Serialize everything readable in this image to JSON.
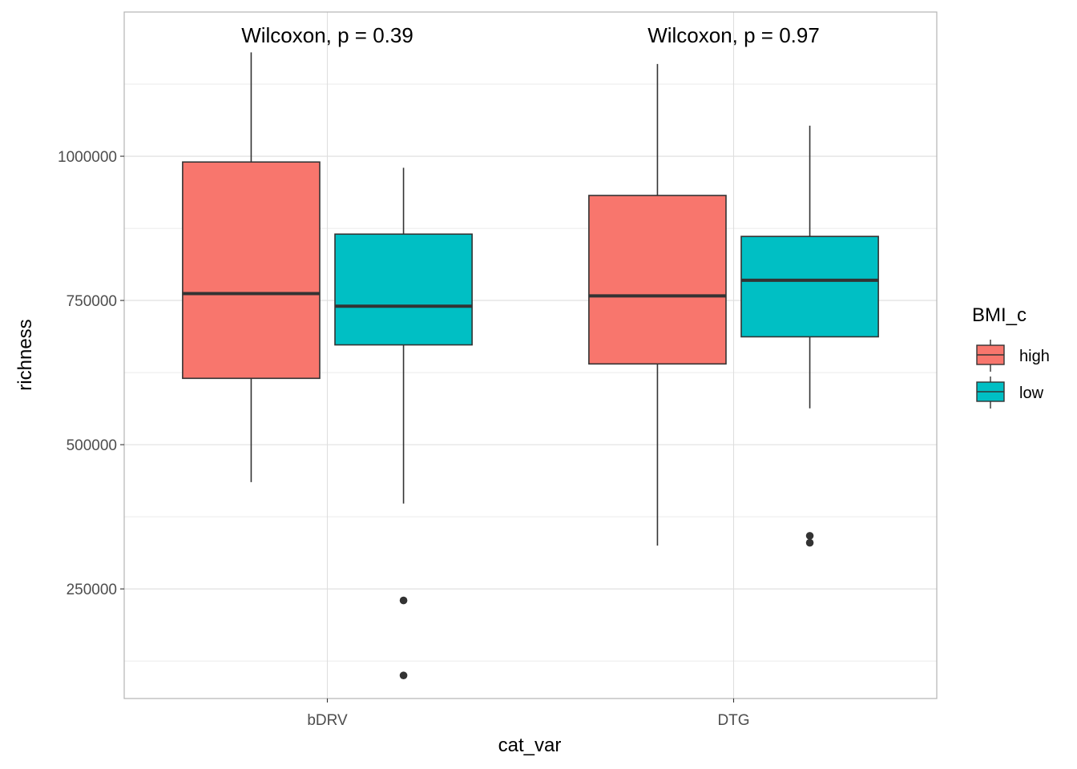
{
  "chart_data": {
    "type": "box",
    "xlabel": "cat_var",
    "ylabel": "richness",
    "categories": [
      "bDRV",
      "DTG"
    ],
    "y_ticks": [
      250000,
      500000,
      750000,
      1000000
    ],
    "y_tick_labels": [
      "250000",
      "500000",
      "750000",
      "1000000"
    ],
    "ylim": [
      60000,
      1250000
    ],
    "grid": true,
    "legend": {
      "title": "BMI_c",
      "placement": "right",
      "items": [
        {
          "label": "high",
          "color": "#F8766D"
        },
        {
          "label": "low",
          "color": "#00BFC4"
        }
      ]
    },
    "annotations": [
      {
        "category": "bDRV",
        "text": "Wilcoxon, p = 0.39"
      },
      {
        "category": "DTG",
        "text": "Wilcoxon, p = 0.97"
      }
    ],
    "series": [
      {
        "group": "high",
        "color": "#F8766D",
        "boxes": [
          {
            "category": "bDRV",
            "whisker_low": 435000,
            "q1": 615000,
            "median": 762000,
            "q3": 990000,
            "whisker_high": 1180000,
            "outliers": []
          },
          {
            "category": "DTG",
            "whisker_low": 325000,
            "q1": 640000,
            "median": 758000,
            "q3": 932000,
            "whisker_high": 1160000,
            "outliers": []
          }
        ]
      },
      {
        "group": "low",
        "color": "#00BFC4",
        "boxes": [
          {
            "category": "bDRV",
            "whisker_low": 398000,
            "q1": 673000,
            "median": 740000,
            "q3": 865000,
            "whisker_high": 980000,
            "outliers": [
              230000,
              100000
            ]
          },
          {
            "category": "DTG",
            "whisker_low": 563000,
            "q1": 687000,
            "median": 785000,
            "q3": 861000,
            "whisker_high": 1053000,
            "outliers": [
              342000,
              330000
            ]
          }
        ]
      }
    ]
  }
}
